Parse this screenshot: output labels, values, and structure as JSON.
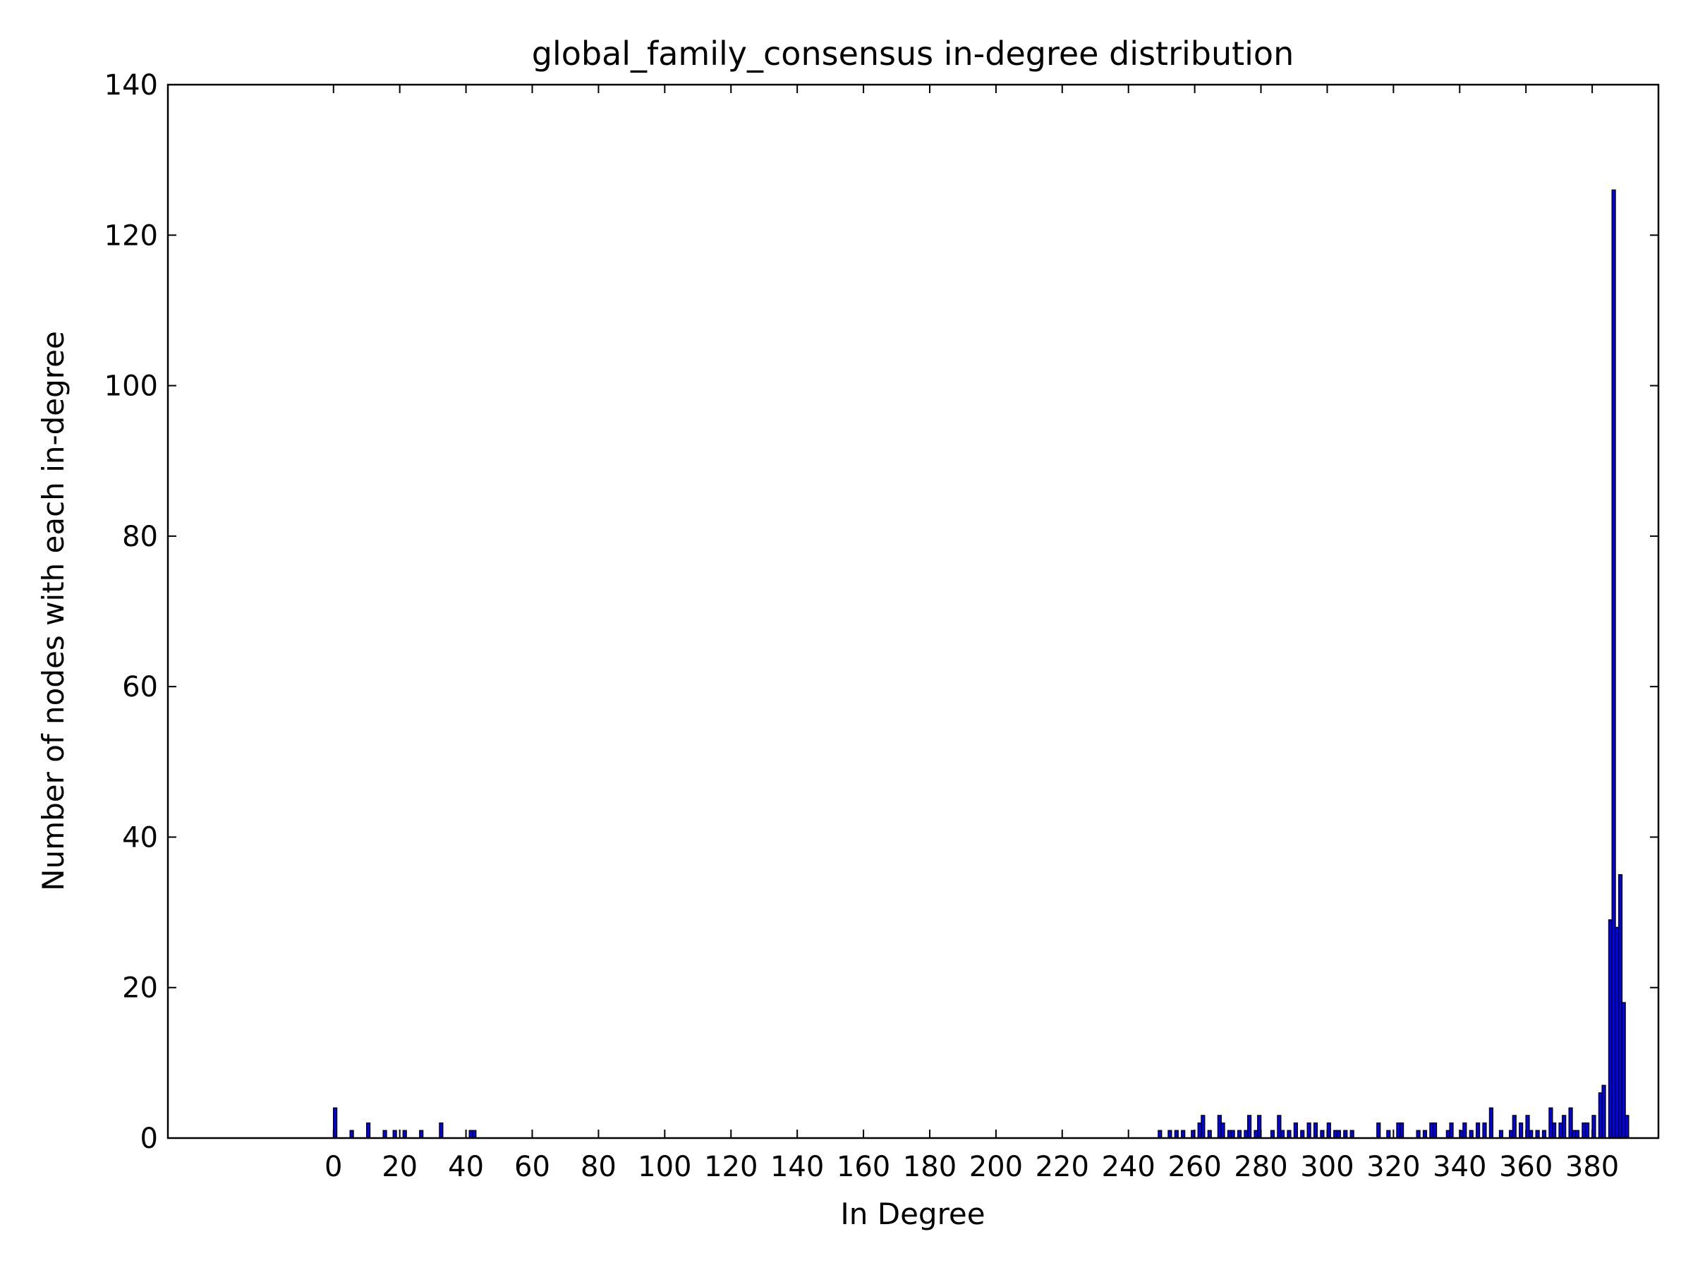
{
  "chart_data": {
    "type": "bar",
    "title": "global_family_consensus in-degree distribution",
    "xlabel": "In Degree",
    "ylabel": "Number of nodes with each in-degree",
    "x": [
      0,
      5,
      10,
      15,
      18,
      21,
      26,
      32,
      41,
      42,
      249,
      252,
      254,
      256,
      259,
      261,
      262,
      264,
      267,
      268,
      270,
      271,
      273,
      275,
      276,
      278,
      279,
      283,
      285,
      286,
      288,
      290,
      292,
      294,
      296,
      298,
      300,
      302,
      303,
      305,
      307,
      315,
      318,
      321,
      322,
      327,
      329,
      331,
      332,
      336,
      337,
      340,
      341,
      343,
      345,
      347,
      349,
      352,
      355,
      356,
      358,
      360,
      361,
      363,
      365,
      367,
      368,
      370,
      371,
      373,
      374,
      375,
      377,
      378,
      380,
      382,
      383,
      385,
      386,
      387,
      388,
      389,
      390
    ],
    "values": [
      4,
      1,
      2,
      1,
      1,
      1,
      1,
      2,
      1,
      1,
      1,
      1,
      1,
      1,
      1,
      2,
      3,
      1,
      3,
      2,
      1,
      1,
      1,
      1,
      3,
      1,
      3,
      1,
      3,
      1,
      1,
      2,
      1,
      2,
      2,
      1,
      2,
      1,
      1,
      1,
      1,
      2,
      1,
      2,
      2,
      1,
      1,
      2,
      2,
      1,
      2,
      1,
      2,
      1,
      2,
      2,
      4,
      1,
      1,
      3,
      2,
      3,
      1,
      1,
      1,
      4,
      2,
      2,
      3,
      4,
      1,
      1,
      2,
      2,
      3,
      6,
      7,
      29,
      126,
      28,
      35,
      18,
      3
    ],
    "color": "#0000ff",
    "edgecolor": "#000000",
    "xlim": [
      -50,
      400
    ],
    "ylim": [
      0,
      140
    ],
    "xticks": [
      0,
      20,
      40,
      60,
      80,
      100,
      120,
      140,
      160,
      180,
      200,
      220,
      240,
      260,
      280,
      300,
      320,
      340,
      360,
      380
    ],
    "yticks": [
      0,
      20,
      40,
      60,
      80,
      100,
      120,
      140
    ]
  }
}
